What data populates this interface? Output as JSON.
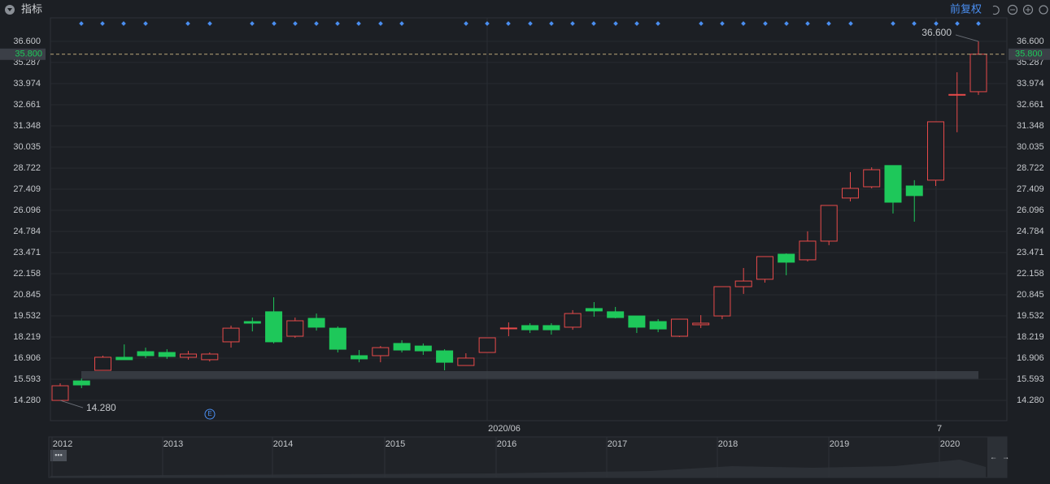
{
  "header": {
    "title": "指标",
    "adjust": "前复权"
  },
  "chart_data": {
    "type": "candlestick",
    "series": [
      {
        "up_color": "#e84a4a",
        "down_color": "#1ec85a",
        "open": [
          14.28,
          15.49,
          16.15,
          16.96,
          17.31,
          17.26,
          16.96,
          16.81,
          17.92,
          19.18,
          19.79,
          18.27,
          19.38,
          18.77,
          17.06,
          17.06,
          17.82,
          17.66,
          17.36,
          16.45,
          17.26,
          18.73,
          18.93,
          18.93,
          18.83,
          19.99,
          19.79,
          19.53,
          19.18,
          18.27,
          18.98,
          19.53,
          21.35,
          21.81,
          23.37,
          23.02,
          24.18,
          26.86,
          27.56,
          28.88,
          27.61,
          27.97,
          33.25,
          33.47
        ],
        "high": [
          15.34,
          15.64,
          17.06,
          17.76,
          17.56,
          17.46,
          17.36,
          17.26,
          18.93,
          19.43,
          20.69,
          19.43,
          19.68,
          18.88,
          17.41,
          17.66,
          18.02,
          17.82,
          17.46,
          17.21,
          18.17,
          19.13,
          19.08,
          19.08,
          19.89,
          20.39,
          20.09,
          19.53,
          19.33,
          19.33,
          19.58,
          21.35,
          22.51,
          23.22,
          23.42,
          24.79,
          26.4,
          28.47,
          28.77,
          28.88,
          27.97,
          31.6,
          34.68,
          36.6
        ],
        "low": [
          14.28,
          15.04,
          16.15,
          16.81,
          16.91,
          16.86,
          16.81,
          16.7,
          17.56,
          18.57,
          17.82,
          18.17,
          18.62,
          17.26,
          16.65,
          16.65,
          17.26,
          17.11,
          16.15,
          16.45,
          17.26,
          18.27,
          18.47,
          18.37,
          18.67,
          19.48,
          19.38,
          18.47,
          18.52,
          18.22,
          18.78,
          19.33,
          20.9,
          21.6,
          22.06,
          22.92,
          23.93,
          26.65,
          27.46,
          25.9,
          25.39,
          27.61,
          30.95,
          33.27
        ],
        "close": [
          15.19,
          15.24,
          16.96,
          16.81,
          17.06,
          17.01,
          17.16,
          17.16,
          18.77,
          19.08,
          17.92,
          19.23,
          18.83,
          17.46,
          16.86,
          17.56,
          17.41,
          17.36,
          16.65,
          16.91,
          18.17,
          18.78,
          18.67,
          18.67,
          19.68,
          19.84,
          19.43,
          18.83,
          18.72,
          19.33,
          19.08,
          21.35,
          21.7,
          23.22,
          22.87,
          24.18,
          26.4,
          27.46,
          28.62,
          26.6,
          27.01,
          31.6,
          33.3,
          35.8
        ]
      }
    ],
    "ylim": [
      13.02,
      38.06
    ],
    "yticks": [
      {
        "value": 14.28,
        "label": "14.280"
      },
      {
        "value": 15.593,
        "label": "15.593"
      },
      {
        "value": 16.906,
        "label": "16.906"
      },
      {
        "value": 18.219,
        "label": "18.219"
      },
      {
        "value": 19.532,
        "label": "19.532"
      },
      {
        "value": 20.845,
        "label": "20.845"
      },
      {
        "value": 22.158,
        "label": "22.158"
      },
      {
        "value": 23.471,
        "label": "23.471"
      },
      {
        "value": 24.784,
        "label": "24.784"
      },
      {
        "value": 26.096,
        "label": "26.096"
      },
      {
        "value": 27.409,
        "label": "27.409"
      },
      {
        "value": 28.722,
        "label": "28.722"
      },
      {
        "value": 30.035,
        "label": "30.035"
      },
      {
        "value": 31.348,
        "label": "31.348"
      },
      {
        "value": 32.661,
        "label": "32.661"
      },
      {
        "value": 33.974,
        "label": "33.974"
      },
      {
        "value": 35.287,
        "label": "35.287"
      },
      {
        "value": 36.6,
        "label": "36.600"
      }
    ],
    "current_price": {
      "value": 35.8,
      "label": "35.800"
    },
    "max_label": {
      "value": 36.6,
      "label": "36.600"
    },
    "min_label": {
      "value": 14.28,
      "label": "14.280"
    },
    "x_labels": [
      "2020/06",
      "7"
    ],
    "navigator_labels": [
      "2012",
      "2013",
      "2014",
      "2015",
      "2016",
      "2017",
      "2018",
      "2019",
      "2020"
    ]
  }
}
